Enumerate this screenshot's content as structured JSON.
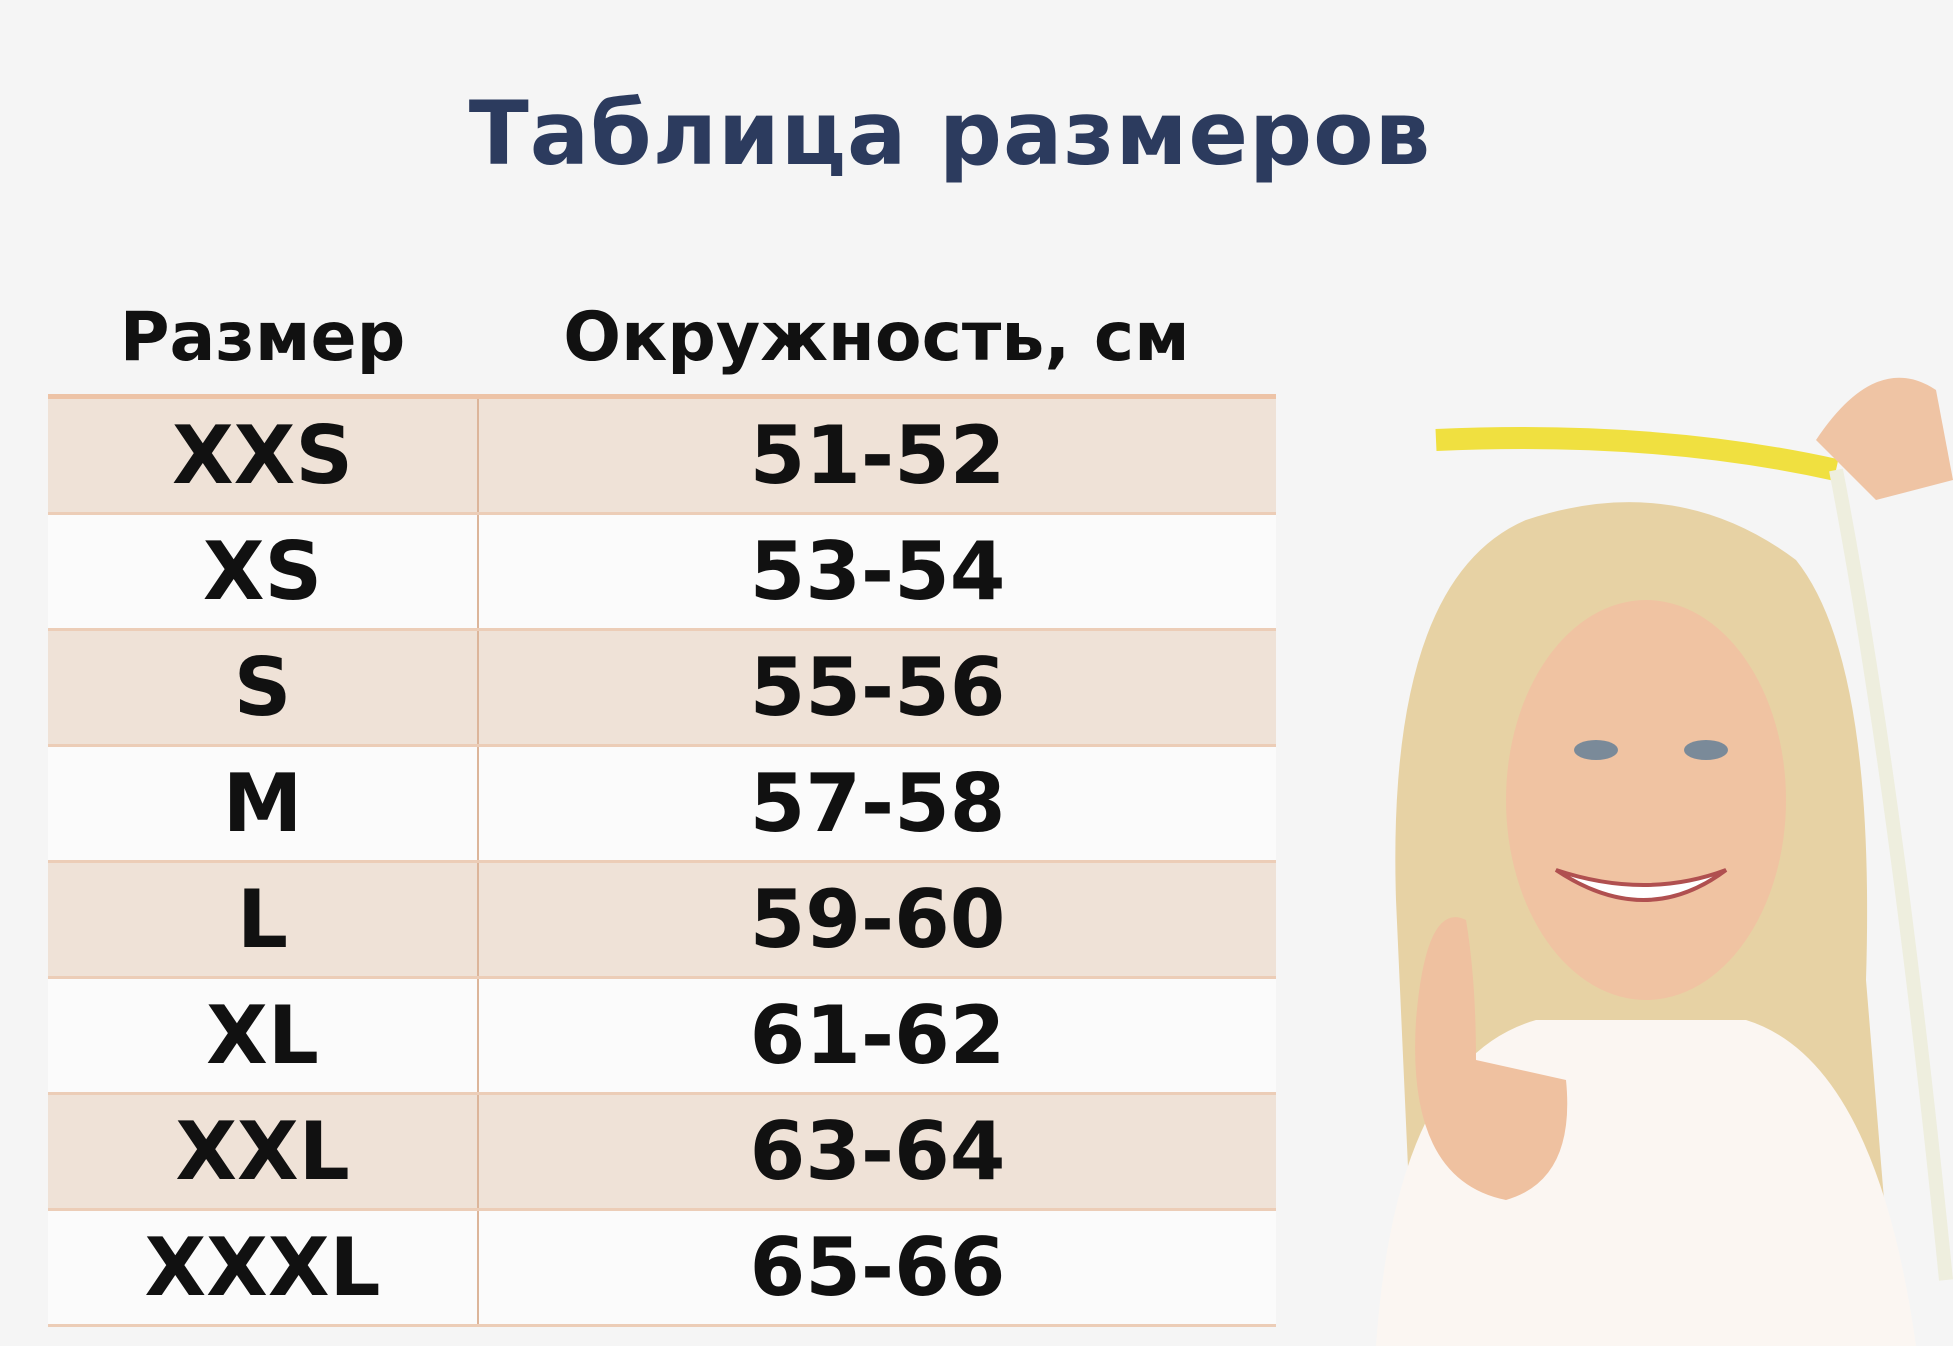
{
  "title": "Таблица размеров",
  "table": {
    "headers": [
      "Размер",
      "Окружность, см"
    ],
    "rows": [
      [
        "XXS",
        "51-52"
      ],
      [
        "XS",
        "53-54"
      ],
      [
        "S",
        "55-56"
      ],
      [
        "M",
        "57-58"
      ],
      [
        "L",
        "59-60"
      ],
      [
        "XL",
        "61-62"
      ],
      [
        "XXL",
        "63-64"
      ],
      [
        "XXXL",
        "65-66"
      ]
    ]
  },
  "colors": {
    "title": "#2c3b5e",
    "row_shade": "#efe2d7",
    "border": "#edc3a6"
  }
}
